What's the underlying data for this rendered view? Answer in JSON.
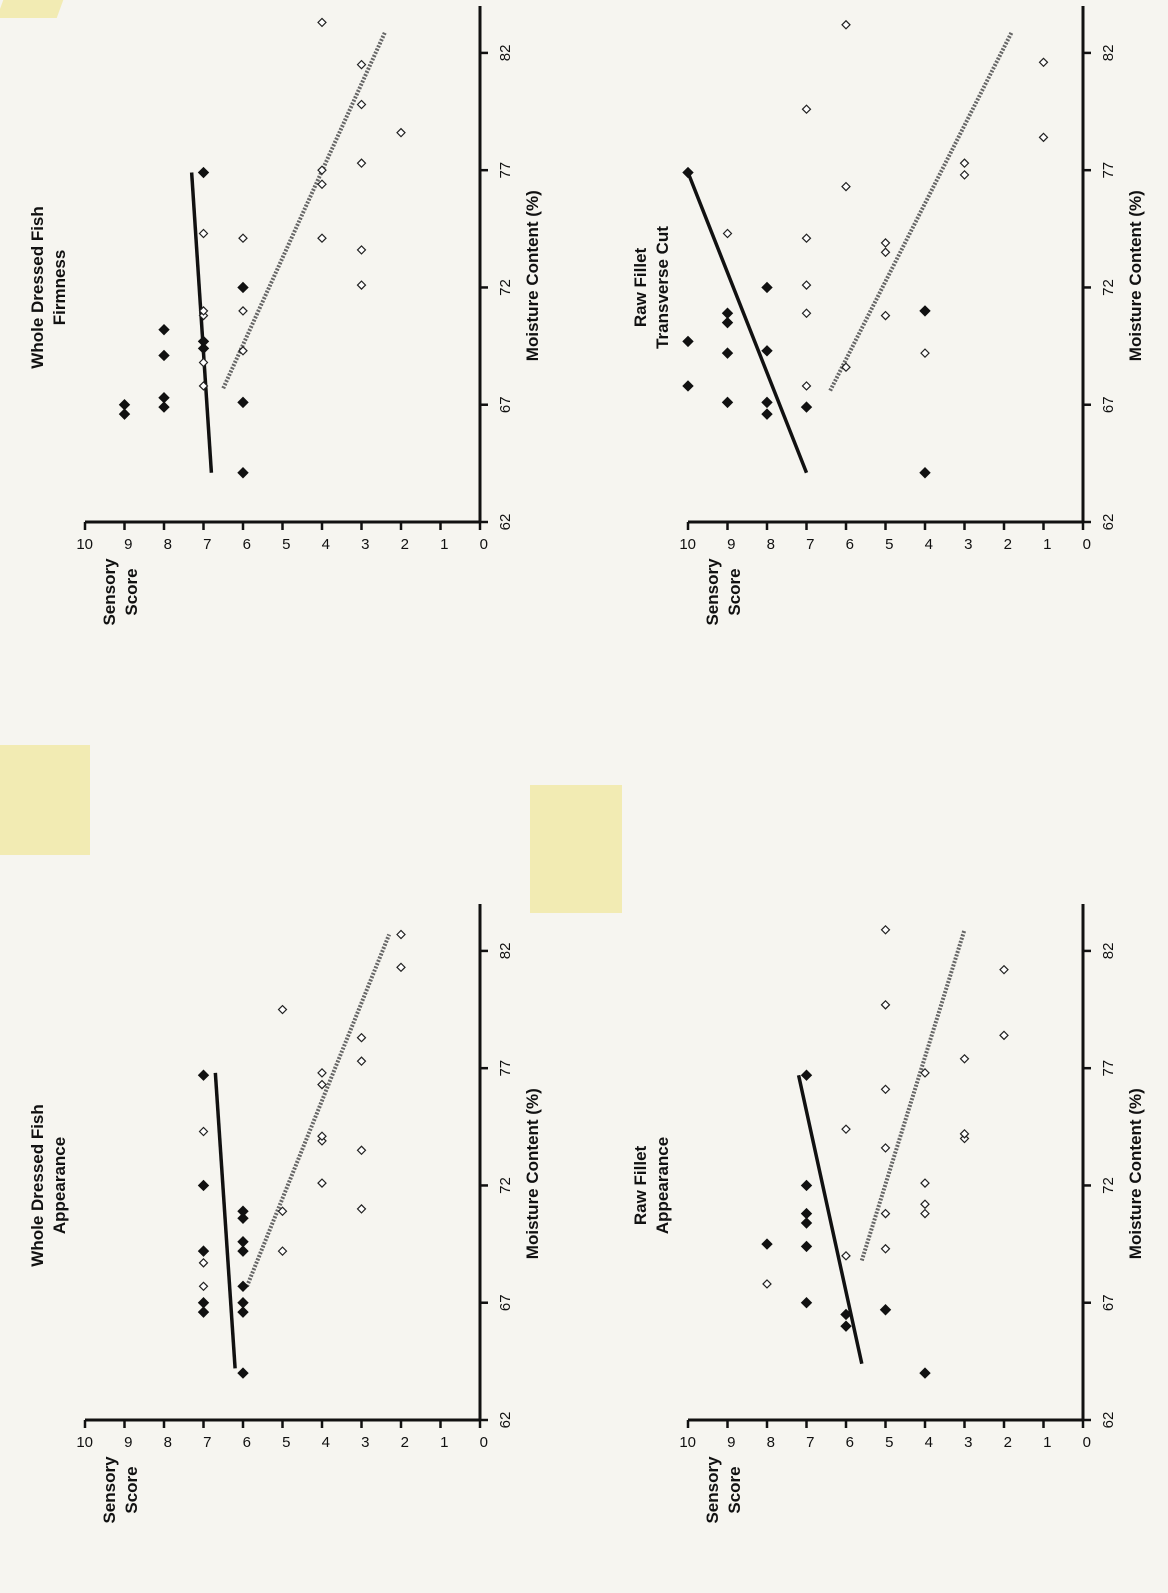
{
  "chart_data": [
    {
      "type": "scatter",
      "title_lines": [
        "Whole Dressed Fish",
        "Appearance"
      ],
      "xlabel": "Moisture Content  (%)",
      "ylabel_lines": [
        "Sensory",
        "Score"
      ],
      "xlim": [
        62,
        84
      ],
      "ylim": [
        0,
        10
      ],
      "xticks": [
        62,
        67,
        72,
        77,
        82
      ],
      "yticks": [
        0,
        1,
        2,
        3,
        4,
        5,
        6,
        7,
        8,
        9,
        10
      ],
      "series": [
        {
          "marker": "filled-diamond",
          "points": [
            [
              64.0,
              6
            ],
            [
              66.6,
              7
            ],
            [
              67.0,
              7
            ],
            [
              66.6,
              6
            ],
            [
              67.0,
              6
            ],
            [
              67.7,
              6
            ],
            [
              69.2,
              7
            ],
            [
              69.2,
              6
            ],
            [
              69.6,
              6
            ],
            [
              70.6,
              6
            ],
            [
              70.9,
              6
            ],
            [
              72.0,
              7
            ],
            [
              76.7,
              7
            ]
          ]
        },
        {
          "marker": "open-diamond",
          "points": [
            [
              67.7,
              7
            ],
            [
              68.7,
              7
            ],
            [
              69.2,
              5
            ],
            [
              70.9,
              5
            ],
            [
              71.0,
              3
            ],
            [
              72.1,
              4
            ],
            [
              73.5,
              3
            ],
            [
              73.9,
              4
            ],
            [
              74.1,
              4
            ],
            [
              74.3,
              7
            ],
            [
              76.3,
              4
            ],
            [
              76.8,
              4
            ],
            [
              77.3,
              3
            ],
            [
              78.3,
              3
            ],
            [
              79.5,
              5
            ],
            [
              81.3,
              2
            ],
            [
              82.7,
              2
            ]
          ]
        }
      ],
      "fits": [
        {
          "style": "solid",
          "from": [
            64.2,
            6.2
          ],
          "to": [
            76.8,
            6.7
          ]
        },
        {
          "style": "dotted",
          "from": [
            67.7,
            5.9
          ],
          "to": [
            82.7,
            2.3
          ]
        }
      ]
    },
    {
      "type": "scatter",
      "title_lines": [
        "Whole Dressed Fish",
        "Firmness"
      ],
      "xlabel": "Moisture Content  (%)",
      "ylabel_lines": [
        "Sensory",
        "Score"
      ],
      "xlim": [
        62,
        84
      ],
      "ylim": [
        0,
        10
      ],
      "xticks": [
        62,
        67,
        72,
        77,
        82
      ],
      "yticks": [
        0,
        1,
        2,
        3,
        4,
        5,
        6,
        7,
        8,
        9,
        10
      ],
      "series": [
        {
          "marker": "filled-diamond",
          "points": [
            [
              66.6,
              9
            ],
            [
              67.0,
              9
            ],
            [
              66.9,
              8
            ],
            [
              67.3,
              8
            ],
            [
              69.1,
              8
            ],
            [
              70.2,
              8
            ],
            [
              69.4,
              7
            ],
            [
              69.7,
              7
            ],
            [
              67.1,
              6
            ],
            [
              64.1,
              6
            ],
            [
              72.0,
              6
            ],
            [
              76.9,
              7
            ]
          ]
        },
        {
          "marker": "open-diamond",
          "points": [
            [
              67.8,
              7
            ],
            [
              68.8,
              7
            ],
            [
              69.3,
              6
            ],
            [
              70.8,
              7
            ],
            [
              71.0,
              7
            ],
            [
              71.0,
              6
            ],
            [
              74.1,
              6
            ],
            [
              74.3,
              7
            ],
            [
              72.1,
              3
            ],
            [
              73.6,
              3
            ],
            [
              74.1,
              4
            ],
            [
              76.4,
              4
            ],
            [
              77.0,
              4
            ],
            [
              77.3,
              3
            ],
            [
              78.6,
              2
            ],
            [
              79.8,
              3
            ],
            [
              81.5,
              3
            ],
            [
              83.3,
              4
            ]
          ]
        }
      ],
      "fits": [
        {
          "style": "solid",
          "from": [
            64.1,
            6.8
          ],
          "to": [
            76.9,
            7.3
          ]
        },
        {
          "style": "dotted",
          "from": [
            67.7,
            6.5
          ],
          "to": [
            82.9,
            2.4
          ]
        }
      ]
    },
    {
      "type": "scatter",
      "title_lines": [
        "Raw Fillet",
        "Appearance"
      ],
      "xlabel": "Moisture Content  (%)",
      "ylabel_lines": [
        "Sensory",
        "Score"
      ],
      "xlim": [
        62,
        84
      ],
      "ylim": [
        0,
        10
      ],
      "xticks": [
        62,
        67,
        72,
        77,
        82
      ],
      "yticks": [
        0,
        1,
        2,
        3,
        4,
        5,
        6,
        7,
        8,
        9,
        10
      ],
      "series": [
        {
          "marker": "filled-diamond",
          "points": [
            [
              64.0,
              4
            ],
            [
              66.7,
              5
            ],
            [
              66.0,
              6
            ],
            [
              66.5,
              6
            ],
            [
              67.0,
              7
            ],
            [
              69.5,
              8
            ],
            [
              69.4,
              7
            ],
            [
              70.4,
              7
            ],
            [
              70.8,
              7
            ],
            [
              72.0,
              7
            ],
            [
              76.7,
              7
            ]
          ]
        },
        {
          "marker": "open-diamond",
          "points": [
            [
              67.8,
              8
            ],
            [
              69.0,
              6
            ],
            [
              69.3,
              5
            ],
            [
              70.8,
              5
            ],
            [
              70.8,
              4
            ],
            [
              71.2,
              4
            ],
            [
              72.1,
              4
            ],
            [
              73.6,
              5
            ],
            [
              74.0,
              3
            ],
            [
              74.2,
              3
            ],
            [
              74.4,
              6
            ],
            [
              76.1,
              5
            ],
            [
              76.8,
              4
            ],
            [
              77.4,
              3
            ],
            [
              78.4,
              2
            ],
            [
              79.7,
              5
            ],
            [
              81.2,
              2
            ],
            [
              82.9,
              5
            ]
          ]
        }
      ],
      "fits": [
        {
          "style": "solid",
          "from": [
            64.4,
            5.6
          ],
          "to": [
            76.7,
            7.2
          ]
        },
        {
          "style": "dotted",
          "from": [
            68.8,
            5.6
          ],
          "to": [
            82.9,
            3.0
          ]
        }
      ]
    },
    {
      "type": "scatter",
      "title_lines": [
        "Raw Fillet",
        "Transverse Cut"
      ],
      "xlabel": "Moisture Content  (%)",
      "ylabel_lines": [
        "Sensory",
        "Score"
      ],
      "xlim": [
        62,
        84
      ],
      "ylim": [
        0,
        10
      ],
      "xticks": [
        62,
        67,
        72,
        77,
        82
      ],
      "yticks": [
        0,
        1,
        2,
        3,
        4,
        5,
        6,
        7,
        8,
        9,
        10
      ],
      "series": [
        {
          "marker": "filled-diamond",
          "points": [
            [
              64.1,
              4
            ],
            [
              66.6,
              8
            ],
            [
              67.1,
              8
            ],
            [
              66.9,
              7
            ],
            [
              67.1,
              9
            ],
            [
              67.8,
              10
            ],
            [
              69.2,
              9
            ],
            [
              69.3,
              8
            ],
            [
              69.7,
              10
            ],
            [
              70.5,
              9
            ],
            [
              70.9,
              9
            ],
            [
              71.0,
              4
            ],
            [
              72.0,
              8
            ],
            [
              76.9,
              10
            ]
          ]
        },
        {
          "marker": "open-diamond",
          "points": [
            [
              67.8,
              7
            ],
            [
              68.6,
              6
            ],
            [
              69.2,
              4
            ],
            [
              70.9,
              7
            ],
            [
              70.8,
              5
            ],
            [
              72.1,
              7
            ],
            [
              73.5,
              5
            ],
            [
              73.9,
              5
            ],
            [
              74.1,
              7
            ],
            [
              74.3,
              9
            ],
            [
              76.3,
              6
            ],
            [
              76.8,
              3
            ],
            [
              77.3,
              3
            ],
            [
              78.4,
              1
            ],
            [
              79.6,
              7
            ],
            [
              81.6,
              1
            ],
            [
              83.2,
              6
            ]
          ]
        }
      ],
      "fits": [
        {
          "style": "solid",
          "from": [
            64.1,
            7.0
          ],
          "to": [
            76.9,
            10.0
          ]
        },
        {
          "style": "dotted",
          "from": [
            67.6,
            6.4
          ],
          "to": [
            82.9,
            1.8
          ]
        }
      ]
    }
  ]
}
